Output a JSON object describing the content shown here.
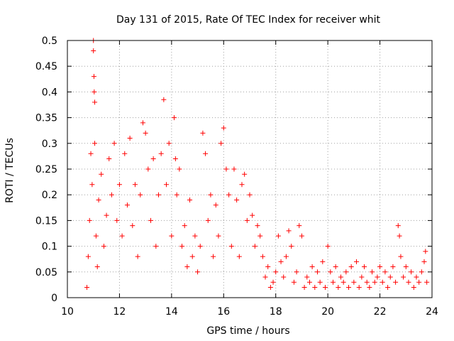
{
  "chart_data": {
    "type": "scatter",
    "title": "Day 131 of 2015, Rate Of TEC Index for receiver whit",
    "xlabel": "GPS time / hours",
    "ylabel": "ROTI / TECUs",
    "xlim": [
      10,
      24
    ],
    "ylim": [
      0,
      0.5
    ],
    "xticks": [
      10,
      12,
      14,
      16,
      18,
      20,
      22,
      24
    ],
    "xtick_labels": [
      "10",
      "12",
      "14",
      "16",
      "18",
      "20",
      "22",
      "24"
    ],
    "yticks": [
      0,
      0.05,
      0.1,
      0.15,
      0.2,
      0.25,
      0.3,
      0.35,
      0.4,
      0.45,
      0.5
    ],
    "ytick_labels": [
      "0",
      "0.05",
      "0.1",
      "0.15",
      "0.2",
      "0.25",
      "0.3",
      "0.35",
      "0.4",
      "0.45",
      "0.5"
    ],
    "grid": true,
    "marker": "plus",
    "color": "#ff0000",
    "series": [
      {
        "name": "ROTI",
        "points": [
          [
            10.75,
            0.02
          ],
          [
            10.8,
            0.08
          ],
          [
            10.85,
            0.15
          ],
          [
            10.9,
            0.28
          ],
          [
            10.95,
            0.22
          ],
          [
            11.0,
            0.5
          ],
          [
            11.0,
            0.48
          ],
          [
            11.02,
            0.43
          ],
          [
            11.03,
            0.4
          ],
          [
            11.05,
            0.38
          ],
          [
            11.05,
            0.3
          ],
          [
            11.1,
            0.12
          ],
          [
            11.15,
            0.06
          ],
          [
            11.2,
            0.19
          ],
          [
            11.3,
            0.24
          ],
          [
            11.4,
            0.1
          ],
          [
            11.5,
            0.16
          ],
          [
            11.6,
            0.27
          ],
          [
            11.7,
            0.2
          ],
          [
            11.8,
            0.3
          ],
          [
            11.9,
            0.15
          ],
          [
            12.0,
            0.22
          ],
          [
            12.1,
            0.12
          ],
          [
            12.2,
            0.28
          ],
          [
            12.3,
            0.18
          ],
          [
            12.4,
            0.31
          ],
          [
            12.5,
            0.14
          ],
          [
            12.6,
            0.22
          ],
          [
            12.7,
            0.08
          ],
          [
            12.8,
            0.2
          ],
          [
            12.9,
            0.34
          ],
          [
            13.0,
            0.32
          ],
          [
            13.1,
            0.25
          ],
          [
            13.2,
            0.15
          ],
          [
            13.3,
            0.27
          ],
          [
            13.4,
            0.1
          ],
          [
            13.5,
            0.2
          ],
          [
            13.6,
            0.28
          ],
          [
            13.7,
            0.385
          ],
          [
            13.8,
            0.22
          ],
          [
            13.9,
            0.3
          ],
          [
            14.0,
            0.12
          ],
          [
            14.1,
            0.35
          ],
          [
            14.15,
            0.27
          ],
          [
            14.2,
            0.2
          ],
          [
            14.3,
            0.25
          ],
          [
            14.4,
            0.1
          ],
          [
            14.5,
            0.14
          ],
          [
            14.6,
            0.06
          ],
          [
            14.7,
            0.19
          ],
          [
            14.8,
            0.08
          ],
          [
            14.9,
            0.12
          ],
          [
            15.0,
            0.05
          ],
          [
            15.1,
            0.1
          ],
          [
            15.2,
            0.32
          ],
          [
            15.3,
            0.28
          ],
          [
            15.4,
            0.15
          ],
          [
            15.5,
            0.2
          ],
          [
            15.6,
            0.08
          ],
          [
            15.7,
            0.18
          ],
          [
            15.8,
            0.12
          ],
          [
            15.9,
            0.3
          ],
          [
            16.0,
            0.33
          ],
          [
            16.1,
            0.25
          ],
          [
            16.2,
            0.2
          ],
          [
            16.3,
            0.1
          ],
          [
            16.4,
            0.25
          ],
          [
            16.5,
            0.19
          ],
          [
            16.6,
            0.08
          ],
          [
            16.7,
            0.22
          ],
          [
            16.8,
            0.24
          ],
          [
            16.9,
            0.15
          ],
          [
            17.0,
            0.2
          ],
          [
            17.1,
            0.16
          ],
          [
            17.2,
            0.1
          ],
          [
            17.3,
            0.14
          ],
          [
            17.4,
            0.12
          ],
          [
            17.5,
            0.08
          ],
          [
            17.6,
            0.04
          ],
          [
            17.7,
            0.06
          ],
          [
            17.8,
            0.02
          ],
          [
            17.9,
            0.03
          ],
          [
            18.0,
            0.05
          ],
          [
            18.1,
            0.12
          ],
          [
            18.2,
            0.07
          ],
          [
            18.3,
            0.04
          ],
          [
            18.4,
            0.08
          ],
          [
            18.5,
            0.13
          ],
          [
            18.6,
            0.1
          ],
          [
            18.7,
            0.03
          ],
          [
            18.8,
            0.05
          ],
          [
            18.9,
            0.14
          ],
          [
            19.0,
            0.12
          ],
          [
            19.1,
            0.02
          ],
          [
            19.2,
            0.04
          ],
          [
            19.3,
            0.03
          ],
          [
            19.4,
            0.06
          ],
          [
            19.5,
            0.02
          ],
          [
            19.6,
            0.05
          ],
          [
            19.7,
            0.03
          ],
          [
            19.8,
            0.07
          ],
          [
            19.9,
            0.02
          ],
          [
            20.0,
            0.1
          ],
          [
            20.1,
            0.05
          ],
          [
            20.2,
            0.03
          ],
          [
            20.3,
            0.06
          ],
          [
            20.4,
            0.02
          ],
          [
            20.5,
            0.04
          ],
          [
            20.6,
            0.03
          ],
          [
            20.7,
            0.05
          ],
          [
            20.8,
            0.02
          ],
          [
            20.9,
            0.06
          ],
          [
            21.0,
            0.03
          ],
          [
            21.1,
            0.07
          ],
          [
            21.2,
            0.02
          ],
          [
            21.3,
            0.04
          ],
          [
            21.4,
            0.06
          ],
          [
            21.5,
            0.03
          ],
          [
            21.6,
            0.02
          ],
          [
            21.7,
            0.05
          ],
          [
            21.8,
            0.03
          ],
          [
            21.9,
            0.04
          ],
          [
            22.0,
            0.06
          ],
          [
            22.1,
            0.03
          ],
          [
            22.2,
            0.05
          ],
          [
            22.3,
            0.02
          ],
          [
            22.4,
            0.04
          ],
          [
            22.5,
            0.06
          ],
          [
            22.6,
            0.03
          ],
          [
            22.7,
            0.14
          ],
          [
            22.75,
            0.12
          ],
          [
            22.8,
            0.08
          ],
          [
            22.9,
            0.04
          ],
          [
            23.0,
            0.06
          ],
          [
            23.1,
            0.03
          ],
          [
            23.2,
            0.05
          ],
          [
            23.3,
            0.02
          ],
          [
            23.4,
            0.04
          ],
          [
            23.5,
            0.03
          ],
          [
            23.6,
            0.05
          ],
          [
            23.7,
            0.07
          ],
          [
            23.75,
            0.09
          ],
          [
            23.8,
            0.03
          ]
        ]
      }
    ]
  }
}
